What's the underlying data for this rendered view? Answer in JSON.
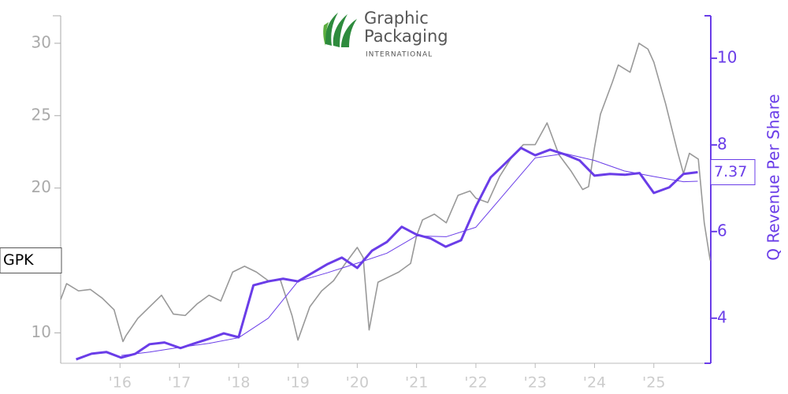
{
  "chart_data": {
    "type": "line",
    "logo": {
      "line1": "Graphic",
      "line2": "Packaging",
      "line3": "INTERNATIONAL"
    },
    "y2label": "Q Revenue Per Share",
    "xlim": [
      2015.0,
      2025.96
    ],
    "xticks": [
      {
        "value": 2016,
        "label": "'16"
      },
      {
        "value": 2017,
        "label": "'17"
      },
      {
        "value": 2018,
        "label": "'18"
      },
      {
        "value": 2019,
        "label": "'19"
      },
      {
        "value": 2020,
        "label": "'20"
      },
      {
        "value": 2021,
        "label": "'21"
      },
      {
        "value": 2022,
        "label": "'22"
      },
      {
        "value": 2023,
        "label": "'23"
      },
      {
        "value": 2024,
        "label": "'24"
      },
      {
        "value": 2025,
        "label": "'25"
      }
    ],
    "ylim": [
      7.9,
      31.9
    ],
    "yticks": [
      10,
      20,
      25,
      30
    ],
    "y2lim": [
      2.96,
      10.98
    ],
    "y2ticks": [
      4,
      6,
      8,
      10
    ],
    "series": [
      {
        "name": "GPK",
        "color": "#999999",
        "axis": "y",
        "x": [
          2015.0,
          2015.1,
          2015.3,
          2015.5,
          2015.7,
          2015.9,
          2016.05,
          2016.1,
          2016.3,
          2016.5,
          2016.7,
          2016.9,
          2017.1,
          2017.3,
          2017.5,
          2017.7,
          2017.9,
          2018.1,
          2018.3,
          2018.5,
          2018.7,
          2018.9,
          2019.0,
          2019.2,
          2019.4,
          2019.6,
          2019.8,
          2020.0,
          2020.1,
          2020.2,
          2020.35,
          2020.5,
          2020.7,
          2020.9,
          2021.0,
          2021.1,
          2021.3,
          2021.5,
          2021.7,
          2021.9,
          2022.0,
          2022.2,
          2022.4,
          2022.6,
          2022.8,
          2023.0,
          2023.2,
          2023.4,
          2023.6,
          2023.8,
          2023.9,
          2024.0,
          2024.1,
          2024.3,
          2024.4,
          2024.6,
          2024.75,
          2024.9,
          2025.0,
          2025.2,
          2025.4,
          2025.5,
          2025.6,
          2025.75,
          2025.85,
          2025.95
        ],
        "values": [
          12.3,
          13.4,
          12.9,
          13.0,
          12.4,
          11.6,
          9.4,
          9.8,
          11.0,
          11.8,
          12.6,
          11.3,
          11.2,
          12.0,
          12.6,
          12.2,
          14.2,
          14.6,
          14.2,
          13.6,
          13.7,
          11.2,
          9.5,
          11.8,
          12.9,
          13.6,
          14.8,
          15.9,
          15.2,
          10.2,
          13.5,
          13.8,
          14.2,
          14.8,
          16.7,
          17.8,
          18.2,
          17.6,
          19.5,
          19.8,
          19.3,
          19.0,
          20.8,
          22.1,
          23.0,
          23.0,
          24.5,
          22.3,
          21.2,
          19.9,
          20.1,
          22.8,
          25.1,
          27.3,
          28.5,
          28.0,
          30.0,
          29.6,
          28.7,
          25.8,
          22.5,
          21.0,
          22.4,
          22.0,
          17.6,
          15.0
        ]
      },
      {
        "name": "Q Revenue Per Share",
        "color": "#6a3de8",
        "axis": "y2",
        "x": [
          2015.26,
          2015.52,
          2015.77,
          2016.02,
          2016.26,
          2016.5,
          2016.75,
          2017.02,
          2017.26,
          2017.51,
          2017.75,
          2018.0,
          2018.25,
          2018.5,
          2018.75,
          2019.0,
          2019.25,
          2019.5,
          2019.74,
          2020.0,
          2020.25,
          2020.5,
          2020.75,
          2021.0,
          2021.24,
          2021.49,
          2021.75,
          2022.0,
          2022.25,
          2022.5,
          2022.76,
          2023.0,
          2023.25,
          2023.5,
          2023.75,
          2024.0,
          2024.26,
          2024.51,
          2024.76,
          2025.0,
          2025.26,
          2025.5,
          2025.74
        ],
        "values": [
          3.05,
          3.18,
          3.22,
          3.09,
          3.18,
          3.4,
          3.44,
          3.31,
          3.42,
          3.53,
          3.65,
          3.56,
          4.76,
          4.85,
          4.91,
          4.85,
          5.05,
          5.25,
          5.4,
          5.16,
          5.56,
          5.76,
          6.11,
          5.93,
          5.84,
          5.65,
          5.8,
          6.58,
          7.25,
          7.58,
          7.93,
          7.76,
          7.89,
          7.78,
          7.64,
          7.29,
          7.33,
          7.31,
          7.35,
          6.89,
          7.02,
          7.33,
          7.37
        ]
      },
      {
        "color": "#6a3de8",
        "axis": "y2",
        "x": [
          2016.02,
          2016.5,
          2017.02,
          2017.5,
          2018.0,
          2018.5,
          2019.0,
          2019.5,
          2020.0,
          2020.5,
          2021.0,
          2021.5,
          2022.0,
          2022.5,
          2023.0,
          2023.5,
          2024.0,
          2024.5,
          2025.0,
          2025.5,
          2025.74
        ],
        "values": [
          3.14,
          3.22,
          3.33,
          3.42,
          3.55,
          4.0,
          4.85,
          5.05,
          5.27,
          5.5,
          5.9,
          5.88,
          6.1,
          6.9,
          7.7,
          7.8,
          7.64,
          7.4,
          7.27,
          7.15,
          7.16
        ]
      }
    ]
  }
}
